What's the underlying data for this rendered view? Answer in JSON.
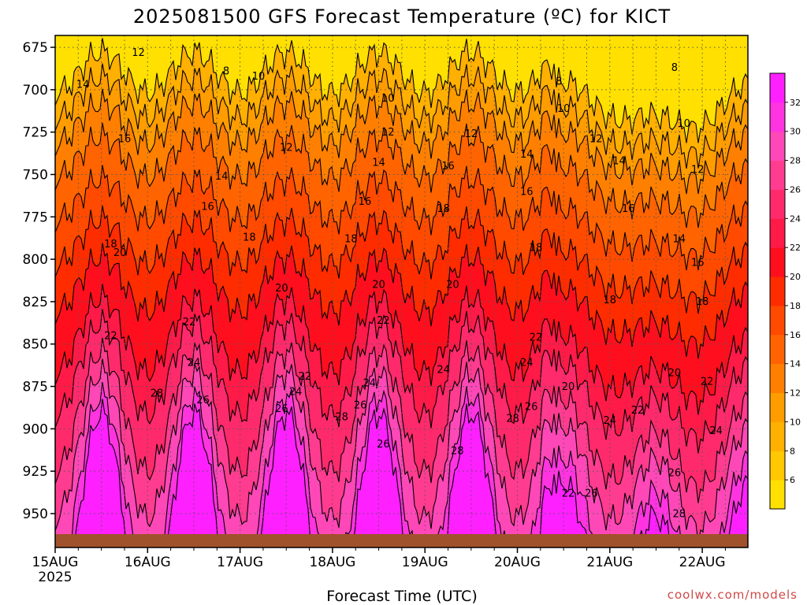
{
  "chart_data": {
    "type": "heatmap",
    "title": "2025081500 GFS Forecast Temperature (ºC) for KICT",
    "xlabel": "Forecast Time (UTC)",
    "ylabel": "",
    "x_ticks": [
      "15AUG",
      "16AUG",
      "17AUG",
      "18AUG",
      "19AUG",
      "20AUG",
      "21AUG",
      "22AUG"
    ],
    "x_year": "2025",
    "y_ticks": [
      675,
      700,
      725,
      750,
      775,
      800,
      825,
      850,
      875,
      900,
      925,
      950
    ],
    "y_range": [
      668,
      970
    ],
    "y_inverted": true,
    "colorbar_ticks": [
      6,
      8,
      10,
      12,
      14,
      16,
      18,
      20,
      22,
      24,
      26,
      28,
      30,
      32
    ],
    "colors": {
      "4": "#ffe000",
      "6": "#ffc800",
      "8": "#ffb000",
      "10": "#ff9c00",
      "12": "#ff8000",
      "14": "#ff6400",
      "16": "#ff4a00",
      "18": "#ff2c00",
      "20": "#ff0f1e",
      "22": "#ff1a48",
      "24": "#ff2a6c",
      "26": "#ff3c90",
      "28": "#ff48b8",
      "30": "#ff34e0",
      "32": "#ff20ff",
      "ground": "#a0522d",
      "grid": "#555555"
    },
    "levels_profile": [
      {
        "t": 8,
        "p": 690
      },
      {
        "t": 10,
        "p": 705
      },
      {
        "t": 12,
        "p": 720
      },
      {
        "t": 14,
        "p": 740
      },
      {
        "t": 16,
        "p": 765
      },
      {
        "t": 18,
        "p": 790
      },
      {
        "t": 20,
        "p": 815
      },
      {
        "t": 22,
        "p": 845
      },
      {
        "t": 24,
        "p": 865
      },
      {
        "t": 26,
        "p": 890
      },
      {
        "t": 28,
        "p": 910
      },
      {
        "t": 30,
        "p": 935
      },
      {
        "t": 32,
        "p": 955
      }
    ],
    "contour_labels": [
      {
        "text": "12",
        "day": 0.9,
        "p": 680
      },
      {
        "text": "14",
        "day": 0.3,
        "p": 699
      },
      {
        "text": "16",
        "day": 0.75,
        "p": 731
      },
      {
        "text": "18",
        "day": 0.6,
        "p": 793
      },
      {
        "text": "20",
        "day": 0.7,
        "p": 798
      },
      {
        "text": "22",
        "day": 0.6,
        "p": 847
      },
      {
        "text": "8",
        "day": 1.85,
        "p": 691
      },
      {
        "text": "10",
        "day": 2.2,
        "p": 694
      },
      {
        "text": "14",
        "day": 1.8,
        "p": 753
      },
      {
        "text": "16",
        "day": 1.65,
        "p": 771
      },
      {
        "text": "18",
        "day": 2.1,
        "p": 789
      },
      {
        "text": "22",
        "day": 1.45,
        "p": 839
      },
      {
        "text": "24",
        "day": 1.5,
        "p": 863
      },
      {
        "text": "28",
        "day": 1.1,
        "p": 881
      },
      {
        "text": "26",
        "day": 1.6,
        "p": 885
      },
      {
        "text": "12",
        "day": 2.5,
        "p": 736
      },
      {
        "text": "10",
        "day": 3.6,
        "p": 707
      },
      {
        "text": "12",
        "day": 3.6,
        "p": 727
      },
      {
        "text": "14",
        "day": 3.5,
        "p": 745
      },
      {
        "text": "16",
        "day": 3.35,
        "p": 768
      },
      {
        "text": "18",
        "day": 3.2,
        "p": 790
      },
      {
        "text": "20",
        "day": 2.45,
        "p": 819
      },
      {
        "text": "22",
        "day": 2.7,
        "p": 871
      },
      {
        "text": "24",
        "day": 2.6,
        "p": 880
      },
      {
        "text": "26",
        "day": 2.45,
        "p": 890
      },
      {
        "text": "28",
        "day": 3.1,
        "p": 895
      },
      {
        "text": "26",
        "day": 3.3,
        "p": 888
      },
      {
        "text": "24",
        "day": 3.4,
        "p": 875
      },
      {
        "text": "22",
        "day": 3.55,
        "p": 838
      },
      {
        "text": "20",
        "day": 3.5,
        "p": 817
      },
      {
        "text": "26",
        "day": 3.55,
        "p": 911
      },
      {
        "text": "16",
        "day": 4.25,
        "p": 747
      },
      {
        "text": "18",
        "day": 4.2,
        "p": 772
      },
      {
        "text": "20",
        "day": 4.3,
        "p": 817
      },
      {
        "text": "24",
        "day": 4.2,
        "p": 867
      },
      {
        "text": "28",
        "day": 4.35,
        "p": 915
      },
      {
        "text": "12",
        "day": 4.5,
        "p": 728
      },
      {
        "text": "14",
        "day": 5.1,
        "p": 740
      },
      {
        "text": "16",
        "day": 5.1,
        "p": 762
      },
      {
        "text": "18",
        "day": 5.2,
        "p": 795
      },
      {
        "text": "22",
        "day": 5.2,
        "p": 848
      },
      {
        "text": "24",
        "day": 5.1,
        "p": 863
      },
      {
        "text": "26",
        "day": 5.15,
        "p": 889
      },
      {
        "text": "28",
        "day": 4.95,
        "p": 896
      },
      {
        "text": "8",
        "day": 5.45,
        "p": 697
      },
      {
        "text": "10",
        "day": 5.5,
        "p": 713
      },
      {
        "text": "12",
        "day": 5.85,
        "p": 731
      },
      {
        "text": "14",
        "day": 6.1,
        "p": 744
      },
      {
        "text": "16",
        "day": 6.2,
        "p": 772
      },
      {
        "text": "18",
        "day": 6.0,
        "p": 826
      },
      {
        "text": "20",
        "day": 5.55,
        "p": 877
      },
      {
        "text": "22",
        "day": 5.55,
        "p": 940
      },
      {
        "text": "26",
        "day": 5.8,
        "p": 940
      },
      {
        "text": "24",
        "day": 6.0,
        "p": 897
      },
      {
        "text": "22",
        "day": 6.3,
        "p": 891
      },
      {
        "text": "8",
        "day": 6.7,
        "p": 689
      },
      {
        "text": "10",
        "day": 6.8,
        "p": 722
      },
      {
        "text": "12",
        "day": 6.95,
        "p": 749
      },
      {
        "text": "14",
        "day": 6.75,
        "p": 790
      },
      {
        "text": "16",
        "day": 6.95,
        "p": 804
      },
      {
        "text": "18",
        "day": 7.0,
        "p": 827
      },
      {
        "text": "20",
        "day": 6.7,
        "p": 869
      },
      {
        "text": "22",
        "day": 7.05,
        "p": 874
      },
      {
        "text": "24",
        "day": 7.15,
        "p": 903
      },
      {
        "text": "26",
        "day": 6.7,
        "p": 928
      },
      {
        "text": "28",
        "day": 6.75,
        "p": 952
      }
    ]
  },
  "credit": "coolwx.com/models"
}
